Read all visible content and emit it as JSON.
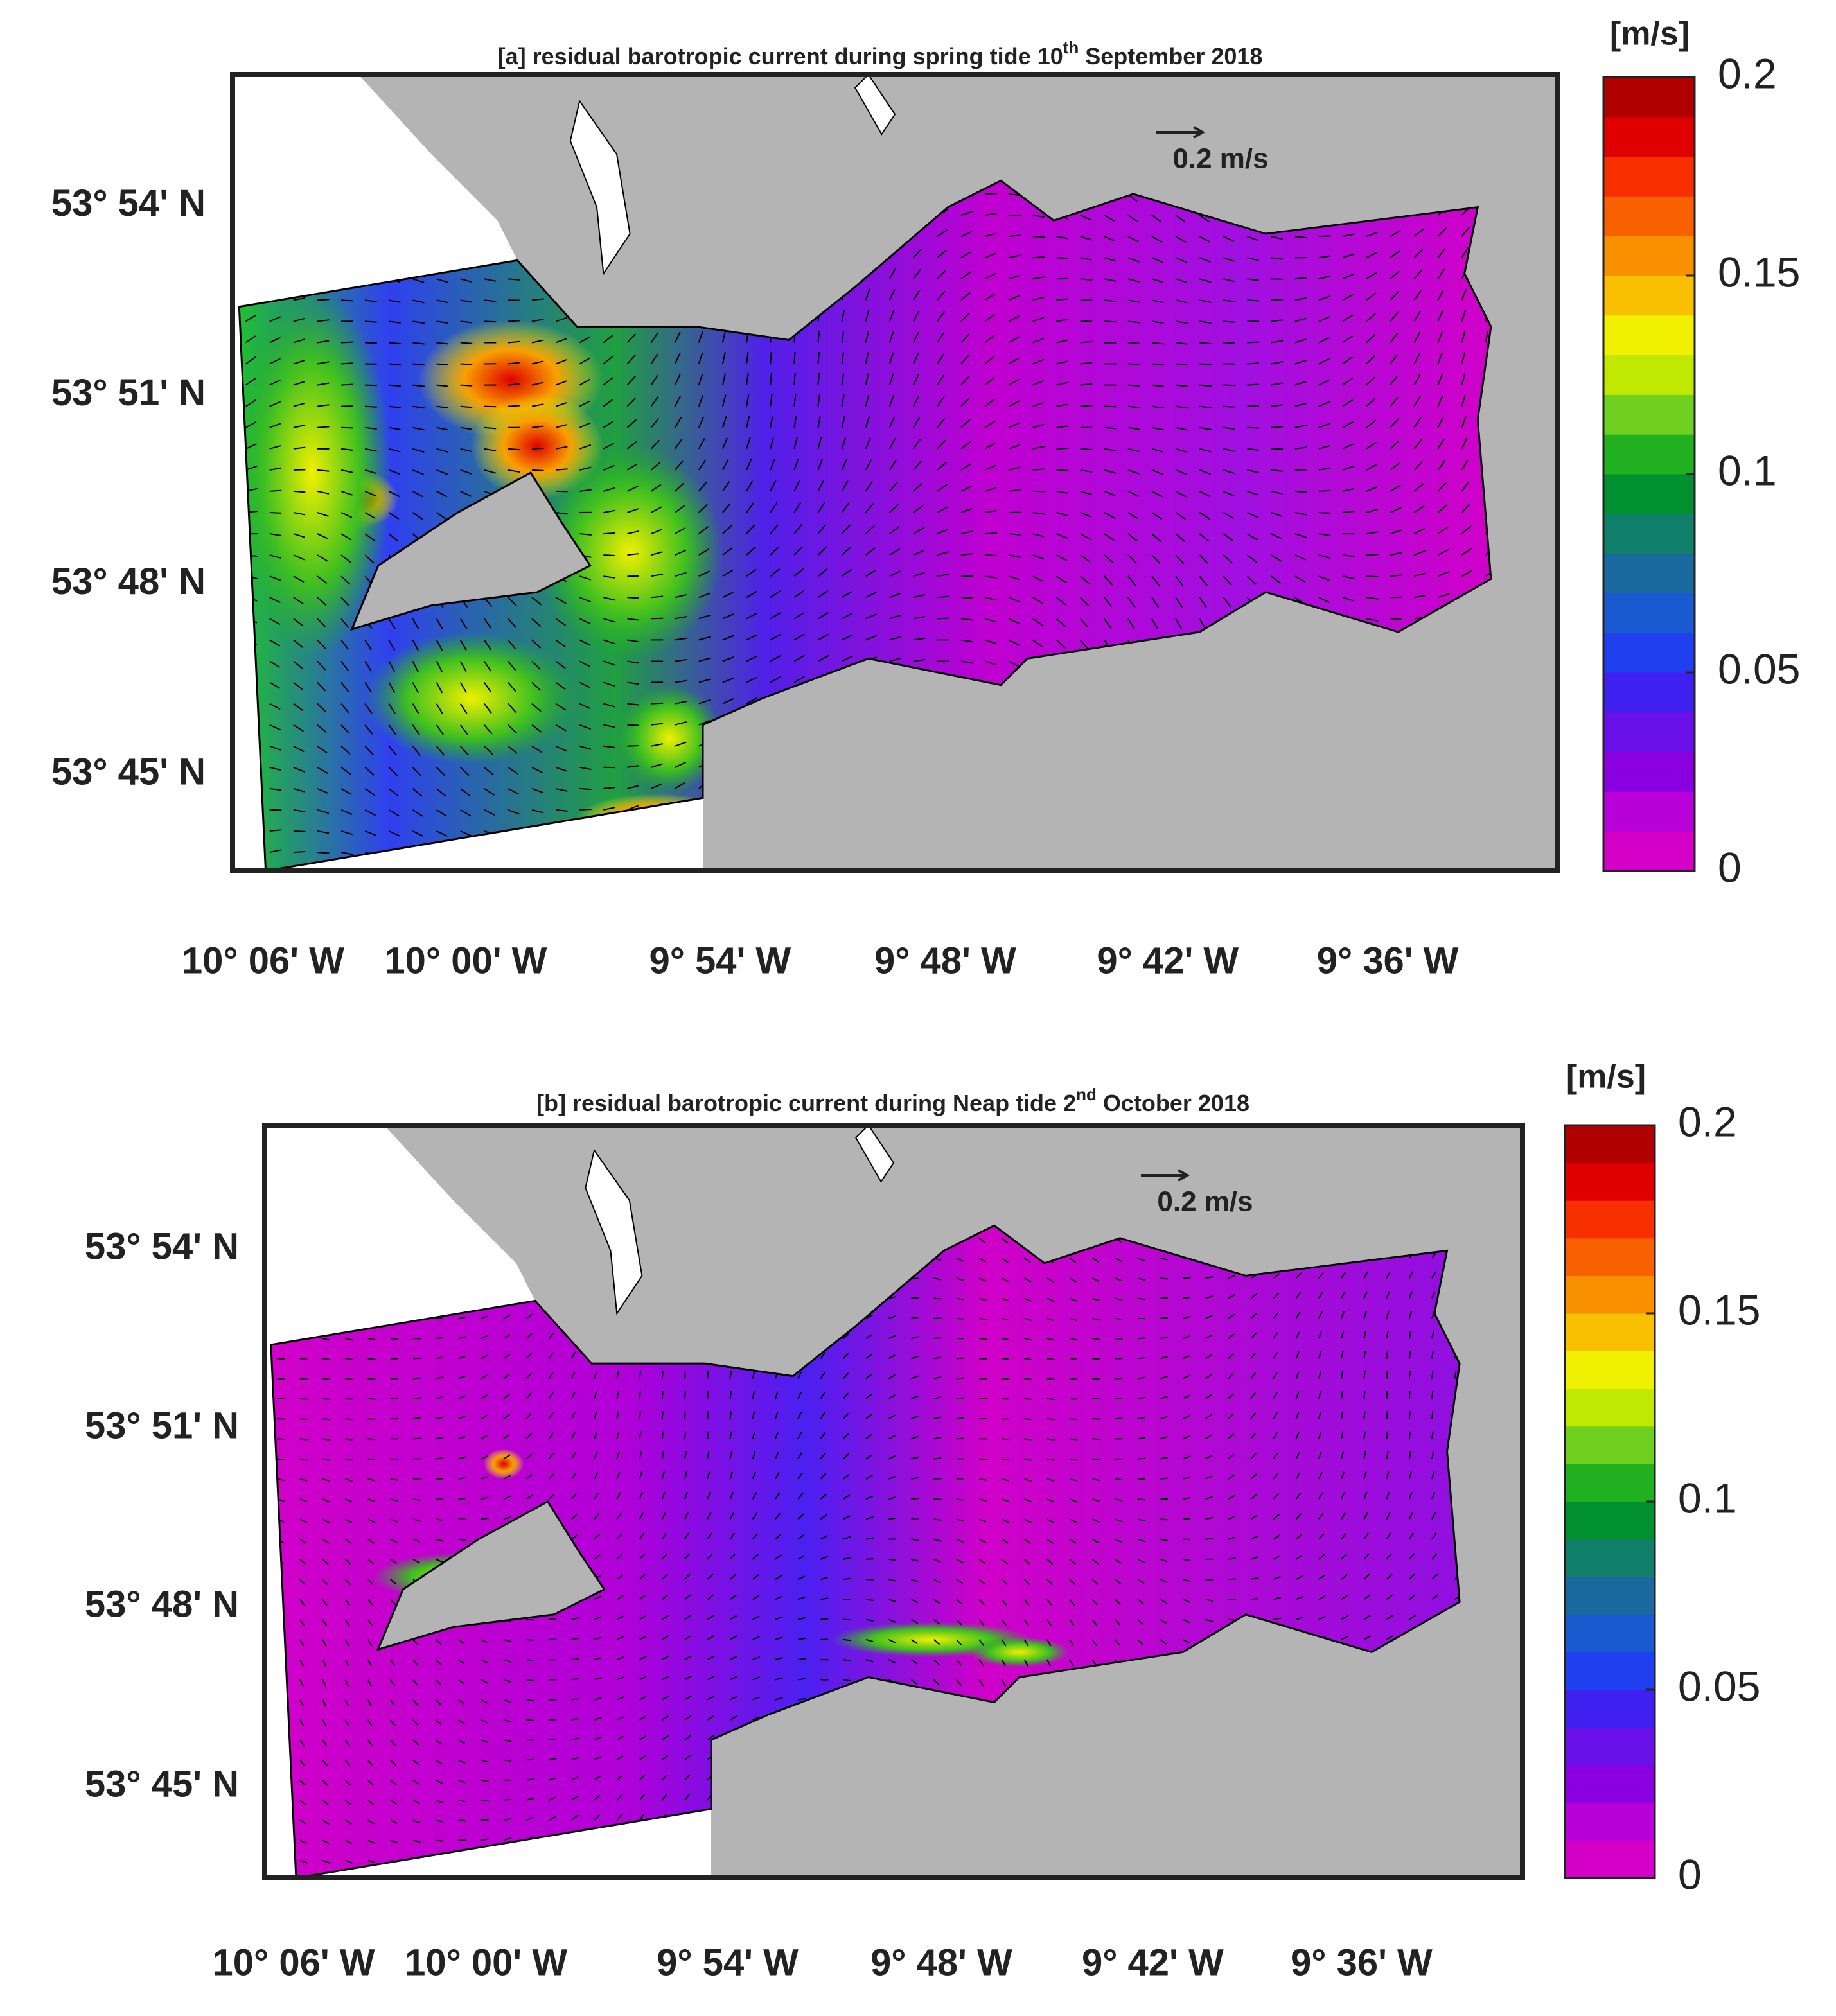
{
  "panels": [
    {
      "title": {
        "text": "[a] residual barotropic current during spring tide 10",
        "superscript": "th",
        "suffix": " September 2018"
      },
      "y_tick_labels": [
        "53° 54' N",
        "53° 51' N",
        "53° 48' N",
        "53° 45' N"
      ],
      "x_tick_labels": [
        "10° 06' W",
        "10° 00' W",
        "9° 54' W",
        "9° 48' W",
        "9° 42' W",
        "9° 36' W"
      ],
      "scale_arrow_label": "0.2 m/s",
      "colorbar": {
        "unit": "[m/s]",
        "lim": [
          0,
          0.2
        ],
        "ticks": [
          0,
          0.05,
          0.1,
          0.15,
          0.2
        ]
      }
    },
    {
      "title": {
        "text": "[b] residual barotropic current during Neap tide 2",
        "superscript": "nd",
        "suffix": " October 2018"
      },
      "y_tick_labels": [
        "53° 54' N",
        "53° 51' N",
        "53° 48' N",
        "53° 45' N"
      ],
      "x_tick_labels": [
        "10° 06' W",
        "10° 00' W",
        "9° 54' W",
        "9° 48' W",
        "9° 42' W",
        "9° 36' W"
      ],
      "scale_arrow_label": "0.2 m/s",
      "colorbar": {
        "unit": "[m/s]",
        "lim": [
          0,
          0.2
        ],
        "ticks": [
          0,
          0.05,
          0.1,
          0.15,
          0.2
        ]
      }
    }
  ],
  "colorbar_colors": [
    "#d400c8",
    "#b800d8",
    "#8a00e0",
    "#6a10e8",
    "#4020f0",
    "#2040f0",
    "#1a5ad0",
    "#1a6aa0",
    "#10806a",
    "#009030",
    "#20b020",
    "#70d020",
    "#c0e800",
    "#f0f000",
    "#f8c000",
    "#f89000",
    "#f86000",
    "#f83000",
    "#e00000",
    "#b00000"
  ]
}
